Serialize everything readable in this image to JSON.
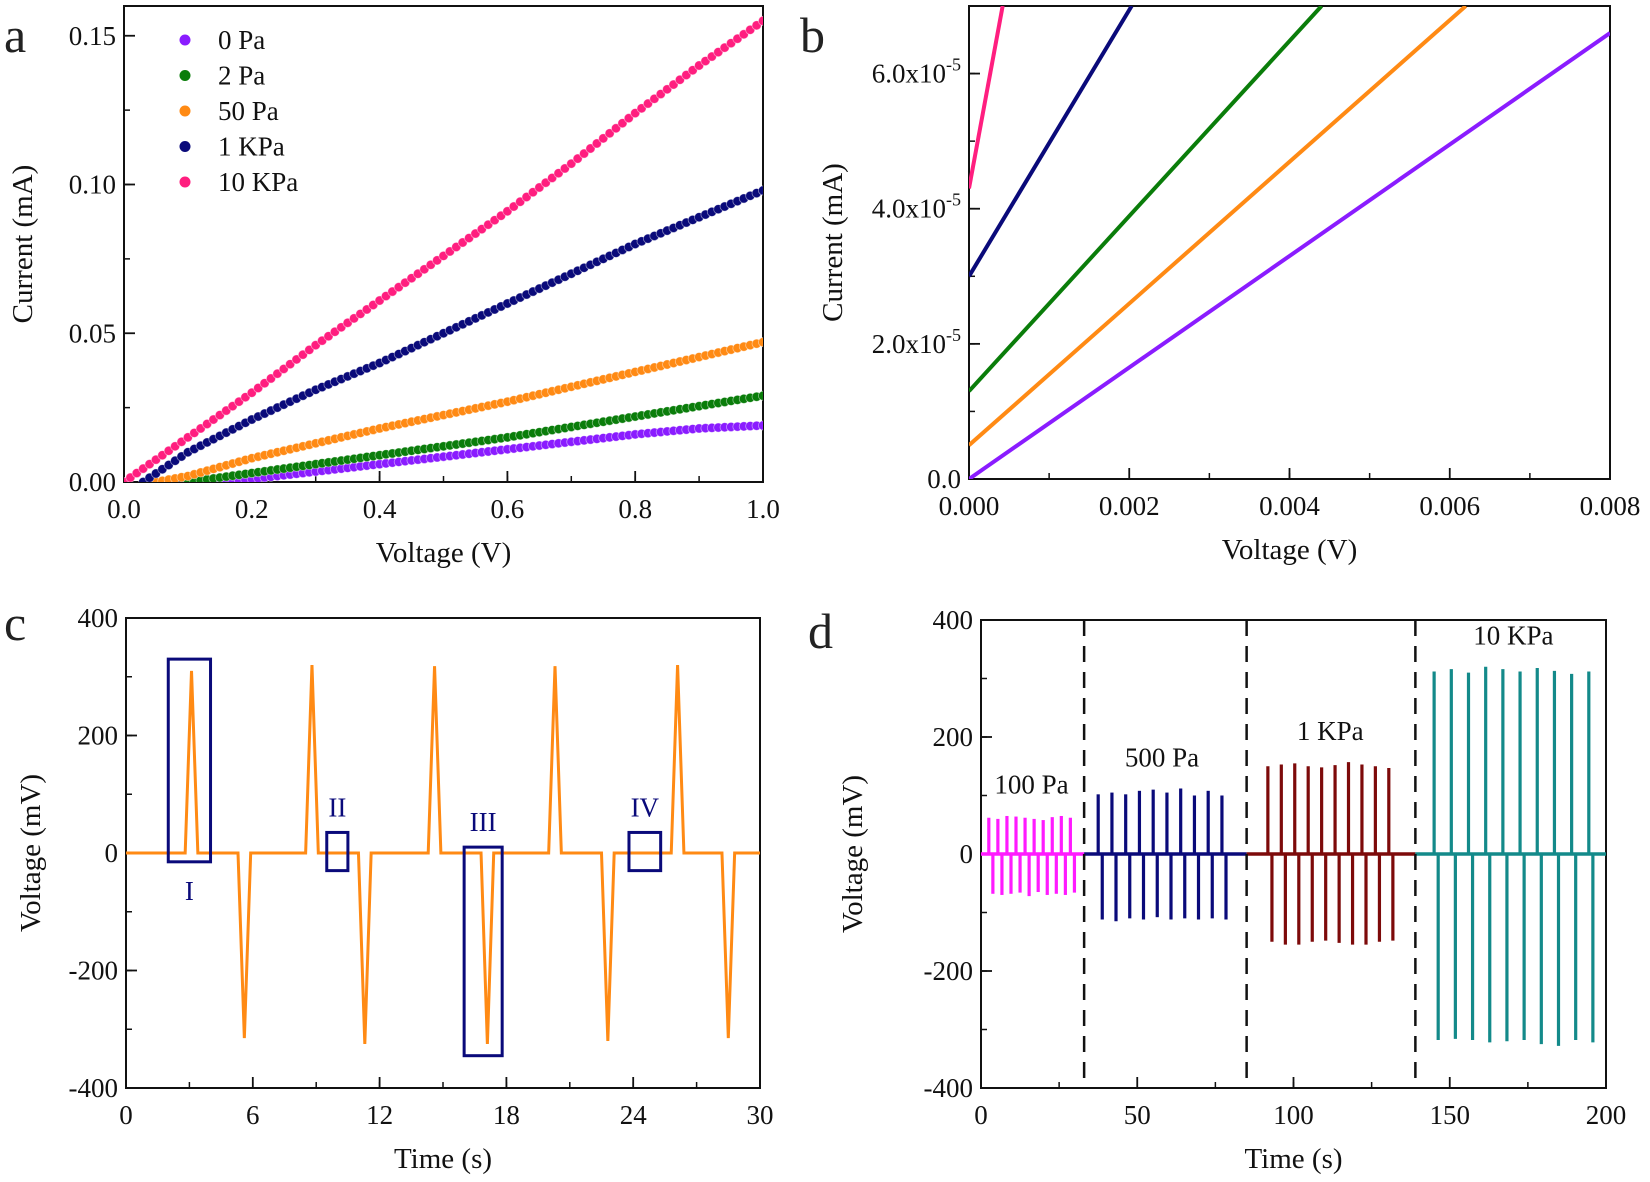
{
  "panel_letters": [
    "a",
    "b",
    "c",
    "d"
  ],
  "chart_data": [
    {
      "panel": "a",
      "type": "scatter",
      "xlabel": "Voltage (V)",
      "ylabel": "Current (mA)",
      "xlim": [
        0,
        1.0
      ],
      "ylim": [
        0,
        0.16
      ],
      "xticks": [
        0,
        0.2,
        0.4,
        0.6,
        0.8,
        1.0
      ],
      "xtick_labels": [
        "0.0",
        "0.2",
        "0.4",
        "0.6",
        "0.8",
        "1.0"
      ],
      "x_minor_step": 0.1,
      "yticks": [
        0,
        0.05,
        0.1,
        0.15
      ],
      "ytick_labels": [
        "0.00",
        "0.05",
        "0.10",
        "0.15"
      ],
      "y_minor_step": 0.025,
      "grid": false,
      "legend": "top-left",
      "series": [
        {
          "name": "0 Pa",
          "color": "#8a1cff",
          "x": [
            0.15,
            0.2,
            0.3,
            0.4,
            0.5,
            0.6,
            0.7,
            0.8,
            0.9,
            1.0
          ],
          "y": [
            0,
            0.001,
            0.0035,
            0.006,
            0.0085,
            0.011,
            0.0135,
            0.016,
            0.018,
            0.019
          ]
        },
        {
          "name": "2 Pa",
          "color": "#0a7d0a",
          "x": [
            0.1,
            0.2,
            0.3,
            0.4,
            0.5,
            0.6,
            0.7,
            0.8,
            0.9,
            1.0
          ],
          "y": [
            0,
            0.003,
            0.006,
            0.009,
            0.012,
            0.015,
            0.0185,
            0.022,
            0.0255,
            0.029
          ]
        },
        {
          "name": "50 Pa",
          "color": "#ff8a14",
          "x": [
            0.05,
            0.1,
            0.2,
            0.3,
            0.4,
            0.5,
            0.6,
            0.7,
            0.8,
            0.9,
            1.0
          ],
          "y": [
            0,
            0.002,
            0.008,
            0.013,
            0.018,
            0.0225,
            0.027,
            0.032,
            0.037,
            0.042,
            0.047
          ]
        },
        {
          "name": "1 KPa",
          "color": "#0a0a7a",
          "x": [
            0.03,
            0.1,
            0.2,
            0.3,
            0.4,
            0.5,
            0.6,
            0.7,
            0.8,
            0.9,
            1.0
          ],
          "y": [
            0,
            0.01,
            0.021,
            0.031,
            0.04,
            0.05,
            0.06,
            0.07,
            0.08,
            0.089,
            0.098
          ]
        },
        {
          "name": "10 KPa",
          "color": "#ff1e7f",
          "x": [
            0,
            0.1,
            0.2,
            0.3,
            0.4,
            0.5,
            0.6,
            0.7,
            0.8,
            0.9,
            1.0
          ],
          "y": [
            0,
            0.015,
            0.03,
            0.046,
            0.061,
            0.076,
            0.091,
            0.107,
            0.124,
            0.14,
            0.155
          ]
        }
      ]
    },
    {
      "panel": "b",
      "type": "line",
      "xlabel": "Voltage (V)",
      "ylabel": "Current (mA)",
      "xlim": [
        0,
        0.008
      ],
      "ylim": [
        0,
        7e-05
      ],
      "xticks": [
        0,
        0.002,
        0.004,
        0.006,
        0.008
      ],
      "xtick_labels": [
        "0.000",
        "0.002",
        "0.004",
        "0.006",
        "0.008"
      ],
      "x_minor_step": 0.001,
      "yticks": [
        0,
        2e-05,
        4e-05,
        6e-05
      ],
      "ytick_labels": [
        "0.0",
        "2.0x10^-5",
        "4.0x10^-5",
        "6.0x10^-5"
      ],
      "y_minor_step": 1e-05,
      "grid": false,
      "series": [
        {
          "color": "#8a1cff",
          "x": [
            0,
            0.008
          ],
          "y": [
            0,
            6.6e-05
          ]
        },
        {
          "color": "#ff8a14",
          "x": [
            0,
            0.0062
          ],
          "y": [
            5e-06,
            7e-05
          ]
        },
        {
          "color": "#0a7d0a",
          "x": [
            0,
            0.0044
          ],
          "y": [
            1.3e-05,
            7e-05
          ]
        },
        {
          "color": "#0a0a7a",
          "x": [
            0,
            0.00203
          ],
          "y": [
            3e-05,
            7e-05
          ]
        },
        {
          "color": "#ff1e7f",
          "x": [
            0,
            0.00042
          ],
          "y": [
            4.3e-05,
            7e-05
          ]
        }
      ]
    },
    {
      "panel": "c",
      "type": "line",
      "xlabel": "Time (s)",
      "ylabel": "Voltage (mV)",
      "xlim": [
        0,
        30
      ],
      "ylim": [
        -400,
        400
      ],
      "xticks": [
        0,
        6,
        12,
        18,
        24,
        30
      ],
      "xtick_labels": [
        "0",
        "6",
        "12",
        "18",
        "24",
        "30"
      ],
      "x_minor_step": 3,
      "yticks": [
        -400,
        -200,
        0,
        200,
        400
      ],
      "ytick_labels": [
        "-400",
        "-200",
        "0",
        "200",
        "400"
      ],
      "y_minor_step": 100,
      "grid": false,
      "series": [
        {
          "color": "#ff8a14",
          "peaks": [
            {
              "t": 3.1,
              "v": 310
            },
            {
              "t": 5.6,
              "v": -315
            },
            {
              "t": 8.8,
              "v": 320
            },
            {
              "t": 11.3,
              "v": -325
            },
            {
              "t": 14.6,
              "v": 318
            },
            {
              "t": 17.1,
              "v": -325
            },
            {
              "t": 20.3,
              "v": 318
            },
            {
              "t": 22.8,
              "v": -320
            },
            {
              "t": 26.1,
              "v": 320
            },
            {
              "t": 28.5,
              "v": -315
            }
          ]
        }
      ],
      "annotations": {
        "color": "#0a0a7a",
        "boxes": [
          {
            "label": "I",
            "t": [
              2.0,
              4.0
            ],
            "v": [
              -15,
              330
            ],
            "label_pos": "below"
          },
          {
            "label": "II",
            "t": [
              9.5,
              10.5
            ],
            "v": [
              -30,
              35
            ],
            "label_pos": "above"
          },
          {
            "label": "III",
            "t": [
              16.0,
              17.8
            ],
            "v": [
              -345,
              10
            ],
            "label_pos": "above"
          },
          {
            "label": "IV",
            "t": [
              23.8,
              25.3
            ],
            "v": [
              -30,
              35
            ],
            "label_pos": "above"
          }
        ]
      }
    },
    {
      "panel": "d",
      "type": "line",
      "xlabel": "Time (s)",
      "ylabel": "Voltage (mV)",
      "xlim": [
        0,
        200
      ],
      "ylim": [
        -400,
        400
      ],
      "xticks": [
        0,
        50,
        100,
        150,
        200
      ],
      "xtick_labels": [
        "0",
        "50",
        "100",
        "150",
        "200"
      ],
      "x_minor_step": 25,
      "yticks": [
        -400,
        -200,
        0,
        200,
        400
      ],
      "ytick_labels": [
        "-400",
        "-200",
        "0",
        "200",
        "400"
      ],
      "y_minor_step": 100,
      "grid": false,
      "dividers": [
        33,
        85,
        139
      ],
      "segments": [
        {
          "label": "100 Pa",
          "color": "#ff1aff",
          "t_range": [
            0,
            33
          ],
          "times": [
            2.5,
            5.4,
            8.3,
            11.2,
            14.1,
            17.0,
            19.9,
            22.8,
            25.7,
            28.6
          ],
          "pos": [
            62,
            60,
            65,
            64,
            62,
            60,
            58,
            63,
            65,
            62
          ],
          "neg": [
            -68,
            -70,
            -68,
            -66,
            -72,
            -65,
            -70,
            -68,
            -70,
            -66
          ]
        },
        {
          "label": "500 Pa",
          "color": "#0a0a7a",
          "t_range": [
            33,
            85
          ],
          "times": [
            37.5,
            41.9,
            46.3,
            50.7,
            55.1,
            59.5,
            63.9,
            68.3,
            72.7,
            77.1
          ],
          "pos": [
            102,
            105,
            102,
            108,
            110,
            105,
            112,
            100,
            108,
            100
          ],
          "neg": [
            -112,
            -115,
            -110,
            -112,
            -108,
            -112,
            -110,
            -112,
            -110,
            -112
          ]
        },
        {
          "label": "1 KPa",
          "color": "#7d0a0a",
          "t_range": [
            85,
            139
          ],
          "times": [
            91.8,
            96.1,
            100.4,
            104.7,
            109.0,
            113.3,
            117.6,
            121.9,
            126.2,
            130.5
          ],
          "pos": [
            150,
            153,
            155,
            150,
            148,
            152,
            157,
            153,
            150,
            147
          ],
          "neg": [
            -150,
            -155,
            -155,
            -150,
            -148,
            -152,
            -155,
            -155,
            -150,
            -148
          ]
        },
        {
          "label": "10 KPa",
          "color": "#138a8a",
          "t_range": [
            139,
            200
          ],
          "times": [
            145.0,
            150.5,
            156.0,
            161.5,
            167.0,
            172.5,
            178.0,
            183.5,
            189.0,
            194.5
          ],
          "pos": [
            312,
            316,
            310,
            320,
            316,
            312,
            318,
            313,
            308,
            312
          ],
          "neg": [
            -318,
            -316,
            -318,
            -322,
            -320,
            -318,
            -325,
            -328,
            -318,
            -322
          ]
        }
      ]
    }
  ]
}
